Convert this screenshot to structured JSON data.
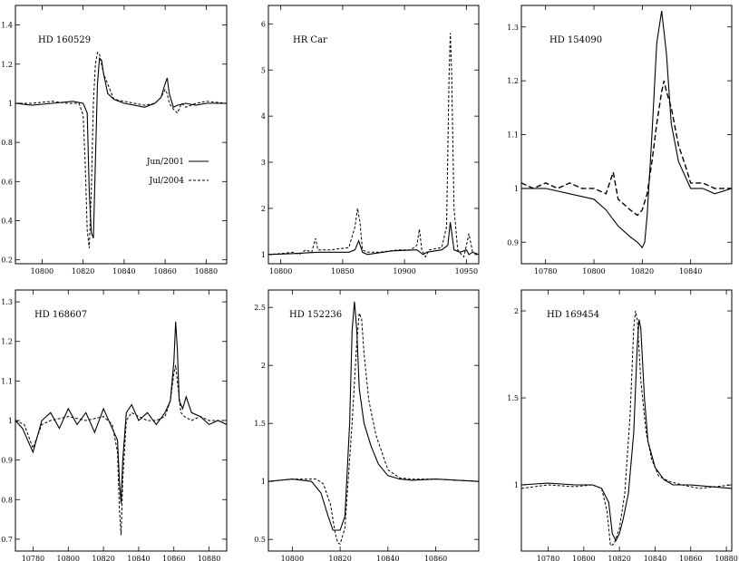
{
  "legend": {
    "entries": [
      {
        "name": "Jun/2001",
        "style": "solid"
      },
      {
        "name": "Jul/2004",
        "style": "dashed"
      }
    ]
  },
  "chart_data": [
    {
      "type": "line",
      "title": "HD 160529",
      "xlim": [
        10787,
        10890
      ],
      "ylim": [
        0.18,
        1.5
      ],
      "xticks": [
        10800,
        10820,
        10840,
        10860,
        10880
      ],
      "yticks": [
        0.2,
        0.4,
        0.6,
        0.8,
        1,
        1.2,
        1.4
      ],
      "series": [
        {
          "style": "solid",
          "x": [
            10787,
            10795,
            10805,
            10815,
            10820,
            10822,
            10823,
            10824,
            10825,
            10826,
            10827,
            10828,
            10829,
            10830,
            10832,
            10835,
            10840,
            10845,
            10850,
            10855,
            10858,
            10860,
            10861,
            10862,
            10864,
            10866,
            10870,
            10875,
            10880,
            10890
          ],
          "y": [
            1.0,
            0.99,
            1.0,
            1.01,
            1.0,
            0.95,
            0.55,
            0.34,
            0.31,
            0.7,
            1.1,
            1.23,
            1.22,
            1.15,
            1.05,
            1.02,
            1.0,
            0.99,
            0.98,
            1.0,
            1.03,
            1.1,
            1.13,
            1.05,
            0.98,
            0.99,
            1.0,
            0.99,
            1.0,
            1.0
          ]
        },
        {
          "style": "dashed",
          "x": [
            10787,
            10795,
            10805,
            10812,
            10818,
            10820,
            10821,
            10822,
            10823,
            10824,
            10825,
            10826,
            10827,
            10828,
            10830,
            10835,
            10840,
            10845,
            10850,
            10855,
            10858,
            10860,
            10861,
            10862,
            10864,
            10866,
            10868,
            10870,
            10875,
            10880,
            10890
          ],
          "y": [
            1.0,
            1.0,
            1.01,
            1.0,
            1.0,
            0.94,
            0.7,
            0.35,
            0.26,
            0.55,
            1.0,
            1.2,
            1.26,
            1.25,
            1.15,
            1.02,
            1.01,
            1.0,
            0.99,
            1.0,
            1.03,
            1.07,
            1.05,
            1.0,
            0.97,
            0.95,
            1.0,
            0.98,
            1.0,
            1.01,
            1.0
          ]
        }
      ]
    },
    {
      "type": "line",
      "title": "HR Car",
      "xlim": [
        10790,
        10960
      ],
      "ylim": [
        0.8,
        6.4
      ],
      "xticks": [
        10800,
        10850,
        10900,
        10950
      ],
      "yticks": [
        1,
        2,
        3,
        4,
        5,
        6
      ],
      "series": [
        {
          "style": "solid",
          "x": [
            10790,
            10810,
            10830,
            10855,
            10860,
            10863,
            10866,
            10870,
            10890,
            10910,
            10915,
            10918,
            10930,
            10935,
            10937,
            10938,
            10940,
            10945,
            10950,
            10952,
            10955,
            10960
          ],
          "y": [
            1.0,
            1.02,
            1.05,
            1.05,
            1.1,
            1.3,
            1.05,
            1.0,
            1.08,
            1.1,
            1.0,
            1.05,
            1.1,
            1.2,
            1.7,
            1.5,
            1.1,
            1.05,
            1.1,
            1.0,
            1.05,
            1.0
          ]
        },
        {
          "style": "dashed",
          "x": [
            10790,
            10800,
            10810,
            10815,
            10820,
            10825,
            10828,
            10830,
            10840,
            10855,
            10860,
            10862,
            10864,
            10866,
            10870,
            10880,
            10895,
            10905,
            10910,
            10912,
            10914,
            10917,
            10920,
            10930,
            10934,
            10936,
            10937,
            10938,
            10940,
            10943,
            10946,
            10948,
            10950,
            10952,
            10955,
            10960
          ],
          "y": [
            1.0,
            1.02,
            1.05,
            1.0,
            1.1,
            1.05,
            1.35,
            1.1,
            1.1,
            1.15,
            1.6,
            2.0,
            1.7,
            1.1,
            1.05,
            1.05,
            1.1,
            1.1,
            1.2,
            1.55,
            1.1,
            0.95,
            1.1,
            1.15,
            1.6,
            4.8,
            5.8,
            5.0,
            2.0,
            1.1,
            1.0,
            0.95,
            1.2,
            1.45,
            1.05,
            1.0
          ]
        }
      ]
    },
    {
      "type": "line",
      "title": "HD 154090",
      "xlim": [
        10770,
        10857
      ],
      "ylim": [
        0.86,
        1.34
      ],
      "xticks": [
        10780,
        10800,
        10820,
        10840
      ],
      "yticks": [
        0.9,
        1,
        1.1,
        1.2,
        1.3
      ],
      "series": [
        {
          "style": "solid",
          "x": [
            10770,
            10780,
            10790,
            10800,
            10805,
            10810,
            10815,
            10818,
            10820,
            10821,
            10822,
            10824,
            10826,
            10828,
            10830,
            10832,
            10835,
            10838,
            10840,
            10845,
            10850,
            10857
          ],
          "y": [
            1.0,
            1.0,
            0.99,
            0.98,
            0.96,
            0.93,
            0.91,
            0.9,
            0.89,
            0.9,
            0.95,
            1.1,
            1.27,
            1.33,
            1.25,
            1.12,
            1.05,
            1.02,
            1.0,
            1.0,
            0.99,
            1.0
          ]
        },
        {
          "style": "dashed-heavy",
          "x": [
            10770,
            10775,
            10780,
            10785,
            10790,
            10795,
            10800,
            10805,
            10808,
            10810,
            10815,
            10818,
            10820,
            10822,
            10824,
            10826,
            10828,
            10829,
            10830,
            10832,
            10835,
            10838,
            10840,
            10845,
            10850,
            10857
          ],
          "y": [
            1.01,
            1.0,
            1.01,
            1.0,
            1.01,
            1.0,
            1.0,
            0.99,
            1.03,
            0.98,
            0.96,
            0.95,
            0.96,
            0.99,
            1.05,
            1.12,
            1.18,
            1.2,
            1.18,
            1.15,
            1.08,
            1.04,
            1.01,
            1.01,
            1.0,
            1.0
          ]
        }
      ]
    },
    {
      "type": "line",
      "title": "HD 168607",
      "xlim": [
        10770,
        10890
      ],
      "ylim": [
        0.67,
        1.33
      ],
      "xticks": [
        10780,
        10800,
        10820,
        10840,
        10860,
        10880
      ],
      "yticks": [
        0.7,
        0.8,
        0.9,
        1,
        1.1,
        1.2,
        1.3
      ],
      "series": [
        {
          "style": "solid",
          "x": [
            10770,
            10774,
            10778,
            10780,
            10785,
            10790,
            10795,
            10800,
            10805,
            10810,
            10815,
            10820,
            10825,
            10828,
            10829,
            10830,
            10831,
            10833,
            10836,
            10840,
            10845,
            10850,
            10855,
            10858,
            10860,
            10861,
            10862,
            10863,
            10865,
            10867,
            10870,
            10875,
            10880,
            10885,
            10890
          ],
          "y": [
            1.0,
            0.98,
            0.94,
            0.92,
            1.0,
            1.02,
            0.98,
            1.03,
            0.99,
            1.02,
            0.97,
            1.03,
            0.98,
            0.95,
            0.85,
            0.79,
            0.9,
            1.02,
            1.04,
            1.0,
            1.02,
            0.99,
            1.02,
            1.05,
            1.15,
            1.25,
            1.18,
            1.05,
            1.03,
            1.06,
            1.02,
            1.01,
            0.99,
            1.0,
            0.99
          ]
        },
        {
          "style": "dashed",
          "x": [
            10770,
            10775,
            10780,
            10785,
            10790,
            10800,
            10810,
            10820,
            10825,
            10828,
            10829,
            10830,
            10831,
            10833,
            10836,
            10840,
            10845,
            10850,
            10855,
            10858,
            10860,
            10861,
            10862,
            10864,
            10866,
            10870,
            10875,
            10880,
            10890
          ],
          "y": [
            1.0,
            0.99,
            0.93,
            0.99,
            1.0,
            1.01,
            1.0,
            1.01,
            0.99,
            0.92,
            0.78,
            0.71,
            0.85,
            1.0,
            1.02,
            1.01,
            1.0,
            1.0,
            1.01,
            1.05,
            1.12,
            1.14,
            1.1,
            1.02,
            1.01,
            1.0,
            1.01,
            1.0,
            1.0
          ]
        }
      ]
    },
    {
      "type": "line",
      "title": "HD 152236",
      "xlim": [
        10790,
        10878
      ],
      "ylim": [
        0.4,
        2.65
      ],
      "xticks": [
        10800,
        10820,
        10840,
        10860
      ],
      "yticks": [
        0.5,
        1,
        1.5,
        2,
        2.5
      ],
      "series": [
        {
          "style": "solid",
          "x": [
            10790,
            10800,
            10808,
            10812,
            10815,
            10817,
            10820,
            10822,
            10824,
            10825,
            10826,
            10827,
            10828,
            10830,
            10833,
            10836,
            10840,
            10845,
            10850,
            10860,
            10878
          ],
          "y": [
            1.0,
            1.02,
            1.0,
            0.9,
            0.7,
            0.58,
            0.58,
            0.7,
            1.5,
            2.3,
            2.55,
            2.3,
            1.8,
            1.5,
            1.3,
            1.15,
            1.05,
            1.02,
            1.01,
            1.02,
            1.0
          ]
        },
        {
          "style": "dashed",
          "x": [
            10790,
            10800,
            10810,
            10813,
            10816,
            10818,
            10819,
            10820,
            10822,
            10825,
            10827,
            10828,
            10829,
            10830,
            10832,
            10835,
            10840,
            10845,
            10850,
            10860,
            10878
          ],
          "y": [
            1.0,
            1.02,
            1.02,
            0.98,
            0.8,
            0.55,
            0.47,
            0.46,
            0.6,
            1.5,
            2.2,
            2.45,
            2.4,
            2.1,
            1.7,
            1.4,
            1.1,
            1.03,
            1.02,
            1.02,
            1.0
          ]
        }
      ]
    },
    {
      "type": "line",
      "title": "HD 169454",
      "xlim": [
        10765,
        10883
      ],
      "ylim": [
        0.62,
        2.12
      ],
      "xticks": [
        10780,
        10800,
        10820,
        10840,
        10860,
        10880
      ],
      "yticks": [
        1,
        1.5,
        2
      ],
      "series": [
        {
          "style": "solid",
          "x": [
            10765,
            10780,
            10795,
            10805,
            10810,
            10814,
            10816,
            10818,
            10820,
            10822,
            10825,
            10828,
            10830,
            10831,
            10832,
            10834,
            10836,
            10840,
            10845,
            10850,
            10860,
            10883
          ],
          "y": [
            1.0,
            1.01,
            1.0,
            1.0,
            0.98,
            0.9,
            0.72,
            0.68,
            0.72,
            0.8,
            0.95,
            1.3,
            1.8,
            1.95,
            1.9,
            1.5,
            1.25,
            1.1,
            1.03,
            1.0,
            1.0,
            0.98
          ]
        },
        {
          "style": "dashed",
          "x": [
            10765,
            10780,
            10795,
            10805,
            10810,
            10813,
            10815,
            10817,
            10820,
            10823,
            10826,
            10828,
            10829,
            10830,
            10832,
            10835,
            10838,
            10842,
            10848,
            10855,
            10865,
            10883
          ],
          "y": [
            0.98,
            1.0,
            0.99,
            1.0,
            0.98,
            0.85,
            0.65,
            0.66,
            0.75,
            0.95,
            1.4,
            1.9,
            2.0,
            1.95,
            1.6,
            1.3,
            1.15,
            1.05,
            1.02,
            1.0,
            0.98,
            1.0
          ]
        }
      ]
    }
  ]
}
